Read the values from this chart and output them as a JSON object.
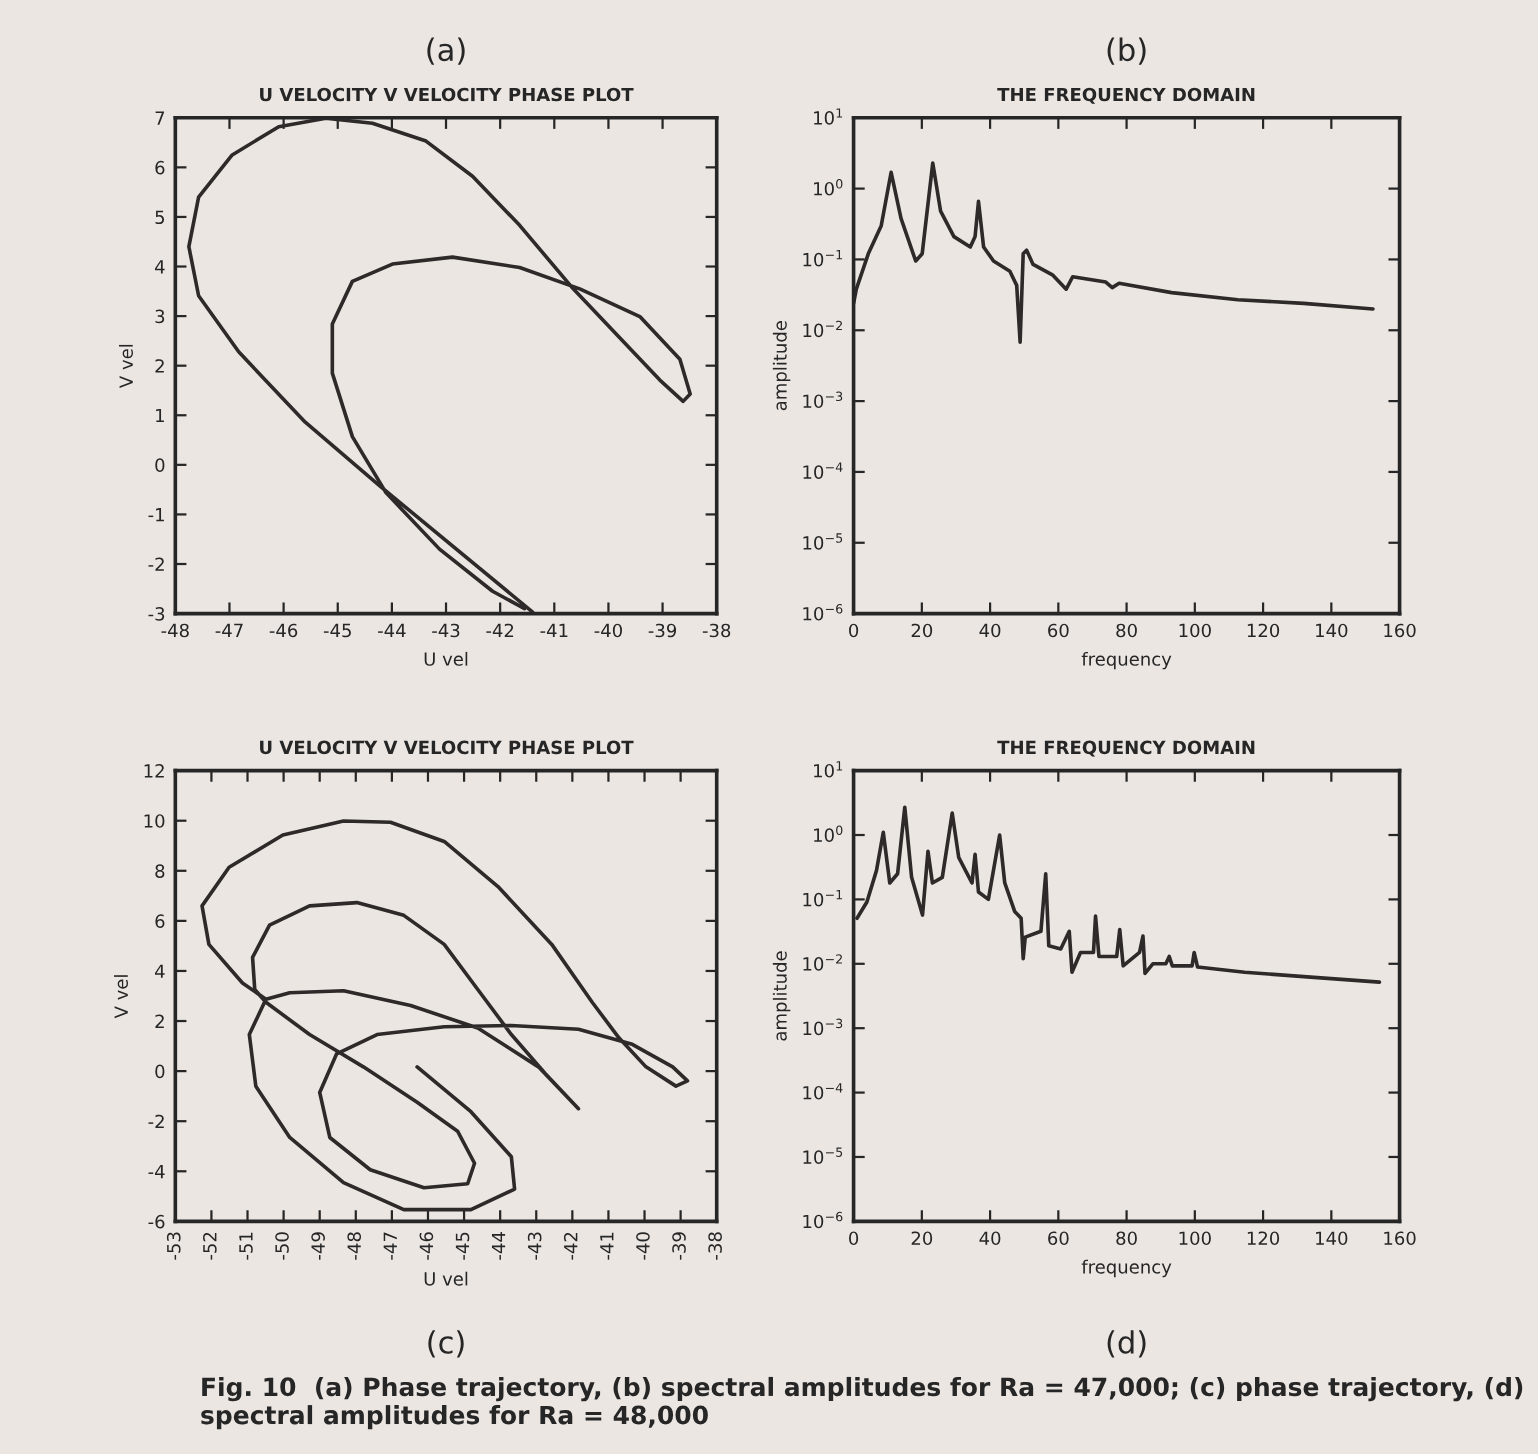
{
  "chart_data": [
    {
      "type": "line",
      "title": "U VELOCITY V VELOCITY PHASE PLOT",
      "xlabel": "U vel",
      "ylabel": "V vel",
      "annotations": [
        "(a)"
      ],
      "x": [
        -41.4,
        -44.23,
        -45.6,
        -46.83,
        -47.57,
        -47.75,
        -47.57,
        -46.95,
        -46.09,
        -45.22,
        -44.36,
        -43.37,
        -42.51,
        -41.64,
        -40.65,
        -39.91,
        -39.05,
        -38.62,
        -38.49,
        -38.68,
        -39.42,
        -40.53,
        -41.64,
        -42.88,
        -43.99,
        -44.73,
        -45.1,
        -45.1,
        -44.73,
        -44.11,
        -43.12,
        -42.14,
        -41.55
      ],
      "series": [
        {
          "color": "#2e2a2a",
          "values": [
            -2.97,
            -0.42,
            0.86,
            2.28,
            3.41,
            4.4,
            5.4,
            6.25,
            6.82,
            6.99,
            6.89,
            6.53,
            5.82,
            4.83,
            3.55,
            2.7,
            1.71,
            1.28,
            1.43,
            2.13,
            2.99,
            3.55,
            3.98,
            4.19,
            4.05,
            3.7,
            2.84,
            1.85,
            0.57,
            -0.56,
            -1.7,
            -2.55,
            -2.9
          ]
        }
      ],
      "xlim": [
        -48,
        -38
      ],
      "ylim": [
        -3,
        7
      ],
      "xticks": [
        -48,
        -47,
        -46,
        -45,
        -44,
        -43,
        -42,
        -41,
        -40,
        -39,
        -38
      ],
      "yticks": [
        -3,
        -2,
        -1,
        0,
        1,
        2,
        3,
        4,
        5,
        6,
        7
      ]
    },
    {
      "type": "line",
      "title": "THE FREQUENCY DOMAIN",
      "xlabel": "frequency",
      "ylabel": "amplitude",
      "annotations": [
        "(b)"
      ],
      "log": true,
      "x": [
        0,
        0.8,
        4.3,
        8.1,
        11.0,
        13.9,
        18.2,
        20.1,
        23.2,
        25.5,
        29.4,
        34.2,
        35.6,
        36.6,
        38.1,
        41.0,
        45.8,
        47.8,
        48.8,
        49.7,
        50.7,
        52.6,
        58.4,
        62.3,
        64.2,
        73.9,
        75.8,
        77.8,
        93.2,
        112.6,
        131.9,
        152.2
      ],
      "series": [
        {
          "color": "#2e2a2a",
          "values": [
            0.024,
            0.038,
            0.12,
            0.3,
            1.7,
            0.38,
            0.095,
            0.12,
            2.3,
            0.48,
            0.21,
            0.15,
            0.21,
            0.66,
            0.15,
            0.095,
            0.068,
            0.043,
            0.0068,
            0.12,
            0.135,
            0.085,
            0.06,
            0.038,
            0.057,
            0.048,
            0.04,
            0.046,
            0.034,
            0.027,
            0.024,
            0.02
          ]
        }
      ],
      "xlim": [
        0,
        160
      ],
      "ylim": [
        1e-06,
        10
      ],
      "xticks": [
        0,
        20,
        40,
        60,
        80,
        100,
        120,
        140,
        160
      ],
      "yticks": [
        {
          "value": 1e-06,
          "label": "10$^{−6}$"
        },
        {
          "value": 1e-05,
          "label": "10$^{−5}$"
        },
        {
          "value": 0.0001,
          "label": "10$^{−4}$"
        },
        {
          "value": 0.001,
          "label": "10$^{−3}$"
        },
        {
          "value": 0.01,
          "label": "10$^{−2}$"
        },
        {
          "value": 0.1,
          "label": "10$^{−1}$"
        },
        {
          "value": 1,
          "label": "10$^{0}$"
        },
        {
          "value": 10,
          "label": "10$^{1}$"
        }
      ]
    },
    {
      "type": "line",
      "title": "U VELOCITY V VELOCITY PHASE PLOT",
      "xlabel": "U vel",
      "ylabel": "V vel",
      "annotations": [
        "(c)"
      ],
      "x": [
        -46.3,
        -44.81,
        -43.69,
        -43.6,
        -44.81,
        -46.67,
        -48.34,
        -49.83,
        -50.77,
        -50.95,
        -50.49,
        -49.83,
        -48.34,
        -46.48,
        -44.62,
        -42.94,
        -41.83,
        -42.76,
        -43.69,
        -44.62,
        -45.55,
        -46.67,
        -47.97,
        -49.28,
        -50.39,
        -50.86,
        -50.8,
        -50.49,
        -49.28,
        -47.79,
        -46.3,
        -45.18,
        -44.71,
        -44.9,
        -46.11,
        -47.6,
        -48.72,
        -49.0,
        -48.53,
        -47.41,
        -45.55,
        -43.69,
        -41.83,
        -40.34,
        -39.22,
        -38.81,
        -39.13,
        -39.96,
        -40.71,
        -41.45,
        -42.57,
        -44.06,
        -45.55,
        -47.04,
        -48.34,
        -50.02,
        -51.51,
        -52.26,
        -52.07,
        -51.14,
        -50.49
      ],
      "series": [
        {
          "color": "#2e2a2a",
          "values": [
            0.17,
            -1.62,
            -3.42,
            -4.71,
            -5.53,
            -5.53,
            -4.45,
            -2.65,
            -0.6,
            1.46,
            2.87,
            3.13,
            3.21,
            2.62,
            1.72,
            0.17,
            -1.5,
            -0.08,
            1.46,
            3.26,
            5.06,
            6.22,
            6.73,
            6.6,
            5.83,
            4.54,
            3.26,
            2.75,
            1.46,
            0.17,
            -1.24,
            -2.4,
            -3.68,
            -4.5,
            -4.66,
            -3.94,
            -2.65,
            -0.85,
            0.69,
            1.46,
            1.77,
            1.82,
            1.67,
            1.07,
            0.17,
            -0.39,
            -0.6,
            0.17,
            1.33,
            2.75,
            5.06,
            7.37,
            9.17,
            9.94,
            9.99,
            9.43,
            8.14,
            6.6,
            5.06,
            3.52,
            2.87
          ]
        }
      ],
      "xlim": [
        -53,
        -38
      ],
      "ylim": [
        -6,
        12
      ],
      "xticks": [
        -53,
        -52,
        -51,
        -50,
        -49,
        -48,
        -47,
        -46,
        -45,
        -44,
        -43,
        -42,
        -41,
        -40,
        -39,
        -38
      ],
      "yticks": [
        -6,
        -4,
        -2,
        0,
        2,
        4,
        6,
        8,
        10,
        12
      ]
    },
    {
      "type": "line",
      "title": "THE FREQUENCY DOMAIN",
      "xlabel": "frequency",
      "ylabel": "amplitude",
      "annotations": [
        "(d)",
        "Fig. 10  (a) Phase trajectory, (b) spectral amplitudes for Ra = 47,000; (c) phase trajectory, (d) spectral amplitudes for Ra = 48,000"
      ],
      "log": true,
      "x": [
        1.0,
        3.9,
        6.7,
        8.7,
        10.6,
        12.9,
        15.0,
        17.0,
        20.2,
        21.8,
        23.1,
        26.0,
        28.9,
        30.8,
        34.7,
        35.6,
        36.6,
        39.5,
        42.8,
        44.3,
        47.2,
        49.1,
        49.7,
        50.3,
        54.9,
        56.3,
        57.2,
        60.7,
        63.2,
        64.0,
        66.5,
        70.3,
        70.9,
        71.9,
        77.1,
        78.0,
        79.0,
        83.8,
        84.8,
        85.4,
        87.7,
        91.5,
        92.5,
        93.4,
        99.2,
        99.8,
        100.8,
        114.6,
        133.9,
        154.1
      ],
      "series": [
        {
          "color": "#2e2a2a",
          "values": [
            0.051,
            0.091,
            0.28,
            1.1,
            0.18,
            0.25,
            2.7,
            0.22,
            0.057,
            0.56,
            0.18,
            0.22,
            2.2,
            0.45,
            0.18,
            0.5,
            0.13,
            0.1,
            1.0,
            0.18,
            0.065,
            0.051,
            0.012,
            0.026,
            0.032,
            0.25,
            0.019,
            0.017,
            0.032,
            0.0074,
            0.015,
            0.015,
            0.055,
            0.013,
            0.013,
            0.034,
            0.0093,
            0.015,
            0.027,
            0.0071,
            0.01,
            0.01,
            0.013,
            0.0093,
            0.0093,
            0.015,
            0.0089,
            0.0074,
            0.0062,
            0.0052
          ]
        }
      ],
      "xlim": [
        0,
        160
      ],
      "ylim": [
        1e-06,
        10
      ],
      "xticks": [
        0,
        20,
        40,
        60,
        80,
        100,
        120,
        140,
        160
      ],
      "yticks": [
        {
          "value": 1e-06,
          "label": "10$^{−6}$"
        },
        {
          "value": 1e-05,
          "label": "10$^{−5}$"
        },
        {
          "value": 0.0001,
          "label": "10$^{−4}$"
        },
        {
          "value": 0.001,
          "label": "10$^{−3}$"
        },
        {
          "value": 0.01,
          "label": "10$^{−2}$"
        },
        {
          "value": 0.1,
          "label": "10$^{−1}$"
        },
        {
          "value": 1,
          "label": "10$^{0}$"
        },
        {
          "value": 10,
          "label": "10$^{1}$"
        }
      ]
    }
  ]
}
